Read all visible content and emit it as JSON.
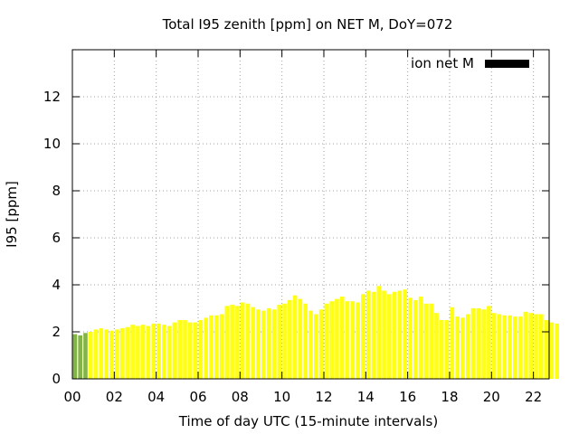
{
  "chart_data": {
    "type": "bar",
    "title": "Total I95 zenith [ppm] on NET M, DoY=072",
    "xlabel": "Time of day UTC (15-minute intervals)",
    "ylabel": "I95 [ppm]",
    "ylim": [
      0,
      14
    ],
    "xlim_hours": [
      0,
      22.75
    ],
    "yticks": [
      "0",
      "2",
      "4",
      "6",
      "8",
      "10",
      "12"
    ],
    "xticks": [
      "00",
      "02",
      "04",
      "06",
      "08",
      "10",
      "12",
      "14",
      "16",
      "18",
      "20",
      "22"
    ],
    "grid": true,
    "legend": {
      "position": "top-right",
      "label": "ion net M",
      "color": "#000000"
    },
    "bar_colors": {
      "green": "#82b446",
      "yellow": "#ffff14"
    },
    "series": [
      {
        "interval_minutes": 15,
        "values": [
          1.9,
          1.85,
          1.95,
          2.0,
          2.1,
          2.15,
          2.1,
          2.05,
          2.1,
          2.15,
          2.2,
          2.3,
          2.25,
          2.3,
          2.25,
          2.35,
          2.35,
          2.3,
          2.25,
          2.4,
          2.5,
          2.5,
          2.4,
          2.4,
          2.5,
          2.6,
          2.7,
          2.7,
          2.75,
          3.1,
          3.15,
          3.1,
          3.25,
          3.2,
          3.05,
          2.95,
          2.9,
          3.0,
          2.95,
          3.15,
          3.2,
          3.35,
          3.55,
          3.4,
          3.2,
          2.9,
          2.75,
          2.95,
          3.2,
          3.3,
          3.4,
          3.5,
          3.3,
          3.3,
          3.25,
          3.6,
          3.75,
          3.7,
          3.95,
          3.75,
          3.6,
          3.7,
          3.75,
          3.8,
          3.45,
          3.35,
          3.5,
          3.2,
          3.2,
          2.8,
          2.5,
          2.5,
          3.05,
          2.65,
          2.6,
          2.75,
          3.0,
          3.0,
          2.95,
          3.1,
          2.8,
          2.75,
          2.7,
          2.7,
          2.65,
          2.65,
          2.85,
          2.8,
          2.75,
          2.75,
          2.5,
          2.4,
          2.35
        ],
        "green_count": 3
      }
    ]
  }
}
